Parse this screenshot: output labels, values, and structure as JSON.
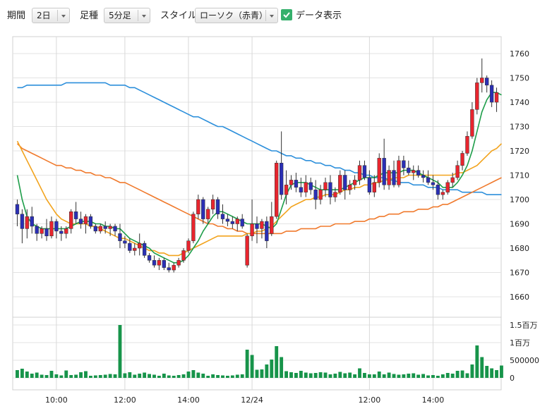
{
  "toolbar": {
    "period_label": "期間",
    "period_value": "2日",
    "bar_label": "足種",
    "bar_value": "5分足",
    "style_label": "スタイル",
    "style_value": "ローソク（赤青）",
    "data_display_label": "データ表示",
    "data_display_checked": true
  },
  "chart_data": {
    "type": "candlestick",
    "price_ylim": [
      1655,
      1765
    ],
    "price_ticks": [
      "1760",
      "1750",
      "1740",
      "1730",
      "1720",
      "1710",
      "1700",
      "1690",
      "1680",
      "1670",
      "1660"
    ],
    "volume_ticks": [
      "1.5百万",
      "1百万",
      "500000",
      "0"
    ],
    "volume_ylim": [
      0,
      1600000
    ],
    "x_ticks": [
      "10:00",
      "12:00",
      "14:00",
      "12/24",
      "12:00",
      "14:00"
    ],
    "grid": true,
    "colors": {
      "up": "#e8252e",
      "down": "#2a2fb5",
      "volume": "#17944a",
      "ma_short": "#1e9e4a",
      "ma_mid": "#f2a31d",
      "ma_long": "#f07a2d",
      "ma_longer": "#2c8fdb"
    },
    "candles": [
      [
        1698,
        1700,
        1689,
        1694
      ],
      [
        1694,
        1696,
        1682,
        1688
      ],
      [
        1688,
        1696,
        1684,
        1693
      ],
      [
        1693,
        1697,
        1686,
        1689
      ],
      [
        1689,
        1690,
        1683,
        1686
      ],
      [
        1686,
        1689,
        1684,
        1688
      ],
      [
        1688,
        1692,
        1683,
        1685
      ],
      [
        1685,
        1693,
        1684,
        1691
      ],
      [
        1691,
        1692,
        1684,
        1687
      ],
      [
        1687,
        1689,
        1683,
        1686
      ],
      [
        1686,
        1689,
        1684,
        1688
      ],
      [
        1688,
        1696,
        1686,
        1695
      ],
      [
        1695,
        1699,
        1690,
        1692
      ],
      [
        1692,
        1695,
        1688,
        1690
      ],
      [
        1690,
        1694,
        1686,
        1693
      ],
      [
        1693,
        1694,
        1688,
        1689
      ],
      [
        1689,
        1690,
        1686,
        1687
      ],
      [
        1687,
        1690,
        1686,
        1689
      ],
      [
        1689,
        1691,
        1686,
        1688
      ],
      [
        1688,
        1690,
        1685,
        1689
      ],
      [
        1689,
        1690,
        1685,
        1687
      ],
      [
        1686,
        1690,
        1680,
        1683
      ],
      [
        1683,
        1685,
        1680,
        1682
      ],
      [
        1682,
        1684,
        1678,
        1679
      ],
      [
        1679,
        1682,
        1677,
        1680
      ],
      [
        1680,
        1686,
        1677,
        1682
      ],
      [
        1682,
        1683,
        1676,
        1677
      ],
      [
        1677,
        1678,
        1674,
        1675
      ],
      [
        1675,
        1677,
        1672,
        1673
      ],
      [
        1673,
        1676,
        1671,
        1675
      ],
      [
        1675,
        1676,
        1671,
        1672
      ],
      [
        1672,
        1674,
        1670,
        1671
      ],
      [
        1671,
        1674,
        1670,
        1673
      ],
      [
        1673,
        1676,
        1672,
        1675
      ],
      [
        1675,
        1680,
        1674,
        1679
      ],
      [
        1679,
        1684,
        1678,
        1683
      ],
      [
        1683,
        1695,
        1682,
        1694
      ],
      [
        1694,
        1702,
        1692,
        1700
      ],
      [
        1700,
        1701,
        1690,
        1692
      ],
      [
        1692,
        1697,
        1690,
        1696
      ],
      [
        1696,
        1702,
        1694,
        1700
      ],
      [
        1700,
        1701,
        1692,
        1694
      ],
      [
        1694,
        1698,
        1690,
        1692
      ],
      [
        1692,
        1694,
        1689,
        1691
      ],
      [
        1691,
        1693,
        1688,
        1690
      ],
      [
        1690,
        1693,
        1687,
        1692
      ],
      [
        1692,
        1694,
        1688,
        1689
      ],
      [
        1673,
        1686,
        1672,
        1685
      ],
      [
        1685,
        1700,
        1683,
        1690
      ],
      [
        1690,
        1693,
        1682,
        1688
      ],
      [
        1688,
        1692,
        1684,
        1691
      ],
      [
        1691,
        1693,
        1680,
        1683
      ],
      [
        1686,
        1699,
        1685,
        1693
      ],
      [
        1693,
        1716,
        1692,
        1715
      ],
      [
        1715,
        1728,
        1700,
        1702
      ],
      [
        1702,
        1712,
        1698,
        1706
      ],
      [
        1706,
        1710,
        1704,
        1708
      ],
      [
        1708,
        1711,
        1703,
        1705
      ],
      [
        1705,
        1709,
        1701,
        1703
      ],
      [
        1703,
        1710,
        1701,
        1707
      ],
      [
        1707,
        1709,
        1702,
        1704
      ],
      [
        1704,
        1708,
        1696,
        1700
      ],
      [
        1700,
        1706,
        1698,
        1704
      ],
      [
        1704,
        1709,
        1701,
        1707
      ],
      [
        1707,
        1710,
        1698,
        1701
      ],
      [
        1701,
        1705,
        1699,
        1703
      ],
      [
        1703,
        1712,
        1702,
        1710
      ],
      [
        1710,
        1712,
        1700,
        1704
      ],
      [
        1704,
        1708,
        1702,
        1706
      ],
      [
        1706,
        1710,
        1704,
        1708
      ],
      [
        1708,
        1716,
        1706,
        1714
      ],
      [
        1714,
        1716,
        1708,
        1709
      ],
      [
        1709,
        1712,
        1702,
        1703
      ],
      [
        1703,
        1710,
        1701,
        1707
      ],
      [
        1707,
        1719,
        1705,
        1717
      ],
      [
        1717,
        1725,
        1704,
        1706
      ],
      [
        1706,
        1714,
        1704,
        1712
      ],
      [
        1712,
        1716,
        1705,
        1706
      ],
      [
        1706,
        1718,
        1705,
        1716
      ],
      [
        1716,
        1718,
        1710,
        1713
      ],
      [
        1713,
        1716,
        1710,
        1711
      ],
      [
        1711,
        1714,
        1708,
        1712
      ],
      [
        1712,
        1714,
        1709,
        1710
      ],
      [
        1710,
        1712,
        1707,
        1709
      ],
      [
        1709,
        1712,
        1706,
        1707
      ],
      [
        1707,
        1710,
        1704,
        1706
      ],
      [
        1706,
        1708,
        1700,
        1702
      ],
      [
        1702,
        1704,
        1700,
        1703
      ],
      [
        1703,
        1708,
        1702,
        1707
      ],
      [
        1707,
        1711,
        1705,
        1709
      ],
      [
        1709,
        1716,
        1708,
        1714
      ],
      [
        1714,
        1720,
        1712,
        1719
      ],
      [
        1719,
        1728,
        1718,
        1726
      ],
      [
        1726,
        1740,
        1725,
        1737
      ],
      [
        1737,
        1750,
        1735,
        1748
      ],
      [
        1748,
        1758,
        1744,
        1750
      ],
      [
        1750,
        1751,
        1744,
        1747
      ],
      [
        1747,
        1749,
        1738,
        1740
      ],
      [
        1740,
        1746,
        1736,
        1744
      ]
    ],
    "volumes": [
      220000,
      260000,
      180000,
      120000,
      150000,
      90000,
      80000,
      200000,
      100000,
      70000,
      210000,
      80000,
      90000,
      160000,
      190000,
      60000,
      70000,
      80000,
      90000,
      110000,
      100000,
      1500000,
      130000,
      160000,
      90000,
      120000,
      150000,
      110000,
      90000,
      60000,
      120000,
      70000,
      60000,
      80000,
      100000,
      180000,
      220000,
      150000,
      120000,
      60000,
      100000,
      80000,
      70000,
      60000,
      70000,
      90000,
      100000,
      800000,
      650000,
      230000,
      240000,
      380000,
      520000,
      900000,
      590000,
      190000,
      160000,
      140000,
      200000,
      150000,
      130000,
      140000,
      160000,
      150000,
      100000,
      120000,
      170000,
      130000,
      150000,
      100000,
      270000,
      140000,
      100000,
      100000,
      180000,
      100000,
      150000,
      110000,
      90000,
      100000,
      120000,
      130000,
      90000,
      110000,
      70000,
      80000,
      60000,
      100000,
      140000,
      120000,
      200000,
      210000,
      130000,
      380000,
      920000,
      590000,
      340000,
      270000,
      220000,
      350000
    ],
    "ma_short": [
      1710,
      1700,
      1693,
      1690,
      1689,
      1688,
      1688,
      1688,
      1688,
      1688,
      1688,
      1689,
      1690,
      1691,
      1691,
      1691,
      1690,
      1690,
      1689,
      1689,
      1688,
      1688,
      1686,
      1684,
      1683,
      1682,
      1681,
      1680,
      1678,
      1677,
      1676,
      1675,
      1674,
      1674,
      1675,
      1677,
      1680,
      1683,
      1687,
      1690,
      1693,
      1695,
      1695,
      1694,
      1693,
      1692,
      1691,
      1690,
      1690,
      1690,
      1690,
      1689,
      1688,
      1690,
      1696,
      1702,
      1706,
      1707,
      1707,
      1707,
      1706,
      1705,
      1704,
      1704,
      1704,
      1704,
      1704,
      1705,
      1706,
      1707,
      1708,
      1709,
      1709,
      1709,
      1710,
      1711,
      1711,
      1711,
      1711,
      1712,
      1712,
      1712,
      1711,
      1710,
      1709,
      1708,
      1707,
      1705,
      1705,
      1705,
      1707,
      1710,
      1714,
      1720,
      1728,
      1736,
      1741,
      1744,
      1744,
      1743
    ],
    "ma_mid": [
      1724,
      1720,
      1716,
      1712,
      1708,
      1704,
      1700,
      1697,
      1694,
      1692,
      1691,
      1690,
      1690,
      1690,
      1690,
      1689,
      1689,
      1688,
      1687,
      1686,
      1685,
      1684,
      1684,
      1683,
      1682,
      1681,
      1680,
      1679,
      1679,
      1678,
      1678,
      1677,
      1677,
      1677,
      1678,
      1679,
      1680,
      1681,
      1682,
      1683,
      1684,
      1685,
      1685,
      1685,
      1685,
      1685,
      1685,
      1686,
      1686,
      1687,
      1687,
      1688,
      1689,
      1691,
      1693,
      1695,
      1697,
      1698,
      1699,
      1700,
      1700,
      1701,
      1701,
      1702,
      1702,
      1702,
      1703,
      1704,
      1704,
      1705,
      1705,
      1706,
      1706,
      1707,
      1707,
      1708,
      1708,
      1709,
      1709,
      1709,
      1710,
      1710,
      1710,
      1710,
      1710,
      1710,
      1710,
      1710,
      1710,
      1710,
      1711,
      1711,
      1712,
      1713,
      1714,
      1716,
      1718,
      1720,
      1721,
      1723
    ],
    "ma_long": [
      1723,
      1721,
      1720,
      1719,
      1718,
      1717,
      1716,
      1715,
      1714,
      1714,
      1713,
      1713,
      1712,
      1712,
      1711,
      1711,
      1710,
      1710,
      1709,
      1709,
      1708,
      1707,
      1707,
      1706,
      1705,
      1704,
      1703,
      1702,
      1701,
      1700,
      1699,
      1698,
      1697,
      1696,
      1695,
      1694,
      1693,
      1692,
      1691,
      1690,
      1690,
      1689,
      1689,
      1688,
      1688,
      1687,
      1687,
      1686,
      1686,
      1686,
      1686,
      1686,
      1686,
      1686,
      1686,
      1687,
      1687,
      1687,
      1688,
      1688,
      1688,
      1688,
      1689,
      1689,
      1689,
      1690,
      1690,
      1690,
      1690,
      1691,
      1691,
      1691,
      1692,
      1692,
      1693,
      1693,
      1694,
      1694,
      1694,
      1695,
      1695,
      1695,
      1696,
      1696,
      1696,
      1697,
      1697,
      1698,
      1698,
      1699,
      1700,
      1701,
      1702,
      1703,
      1704,
      1705,
      1706,
      1707,
      1708,
      1709
    ],
    "ma_longer": [
      1746,
      1746,
      1747,
      1747,
      1747,
      1747,
      1747,
      1747,
      1747,
      1747,
      1748,
      1748,
      1748,
      1748,
      1748,
      1748,
      1748,
      1748,
      1748,
      1747,
      1747,
      1747,
      1747,
      1746,
      1746,
      1745,
      1744,
      1743,
      1742,
      1741,
      1740,
      1739,
      1738,
      1737,
      1736,
      1735,
      1734,
      1734,
      1733,
      1732,
      1731,
      1730,
      1730,
      1729,
      1728,
      1727,
      1726,
      1725,
      1724,
      1723,
      1722,
      1721,
      1720,
      1720,
      1719,
      1718,
      1718,
      1717,
      1717,
      1716,
      1716,
      1715,
      1715,
      1714,
      1714,
      1713,
      1713,
      1712,
      1712,
      1711,
      1711,
      1710,
      1710,
      1709,
      1709,
      1709,
      1708,
      1708,
      1707,
      1707,
      1707,
      1706,
      1706,
      1706,
      1705,
      1705,
      1705,
      1704,
      1704,
      1704,
      1704,
      1703,
      1703,
      1703,
      1703,
      1703,
      1702,
      1702,
      1702,
      1702
    ]
  }
}
